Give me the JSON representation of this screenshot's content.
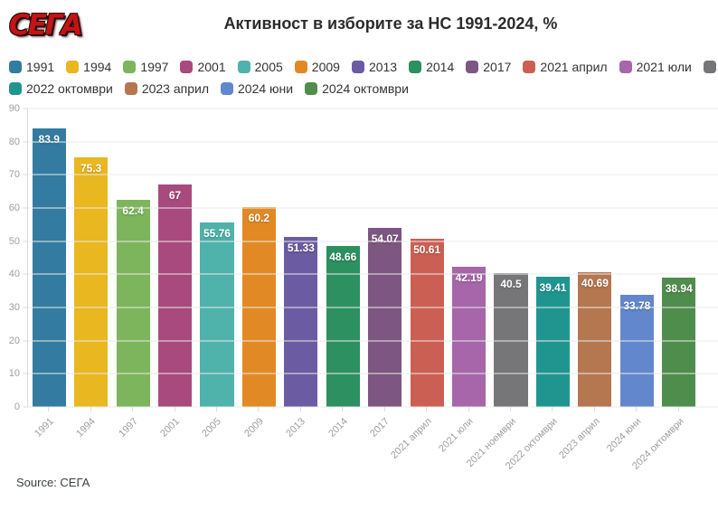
{
  "logo": {
    "text": "СЕГА"
  },
  "header": {
    "title": "Активност в изборите за НС 1991-2024, %"
  },
  "chart_data": {
    "type": "bar",
    "title": "Активност в изборите за НС 1991-2024, %",
    "categories": [
      "1991",
      "1994",
      "1997",
      "2001",
      "2005",
      "2009",
      "2013",
      "2014",
      "2017",
      "2021 април",
      "2021 юли",
      "2021 ноември",
      "2022 октомври",
      "2023 април",
      "2024 юни",
      "2024 октомври"
    ],
    "values": [
      83.9,
      75.3,
      62.4,
      67,
      55.76,
      60.2,
      51.33,
      48.66,
      54.07,
      50.61,
      42.19,
      40.5,
      39.41,
      40.69,
      33.78,
      38.94
    ],
    "value_labels": [
      "83.9",
      "75.3",
      "62.4",
      "67",
      "55.76",
      "60.2",
      "51.33",
      "48.66",
      "54.07",
      "50.61",
      "42.19",
      "40.5",
      "39.41",
      "40.69",
      "33.78",
      "38.94"
    ],
    "colors": [
      "#337ba0",
      "#e9b71f",
      "#7cb55b",
      "#a84a7d",
      "#4fb2ab",
      "#e18a25",
      "#6b5ba3",
      "#2c9061",
      "#7d5681",
      "#cc5f53",
      "#a666a9",
      "#767678",
      "#209590",
      "#b57750",
      "#6287cd",
      "#4f8d4d"
    ],
    "xlabel": "",
    "ylabel": "",
    "ylim": [
      0,
      90
    ],
    "ytick_step": 10,
    "grid": true,
    "legend_position": "top",
    "legend_row_split": 12,
    "bar_band_fill": 0.8
  },
  "footer": {
    "source": "Source: СЕГА"
  },
  "colors": {
    "background": "#ffffff",
    "logo_red": "#c41414",
    "title_text": "#2b2b2b",
    "legend_text": "#333333",
    "axis_text": "#9e9e9e",
    "grid_line": "#ebebeb",
    "axis_line": "#dcdcdc",
    "bar_label": "#ffffff",
    "source_text": "#3c4043"
  }
}
